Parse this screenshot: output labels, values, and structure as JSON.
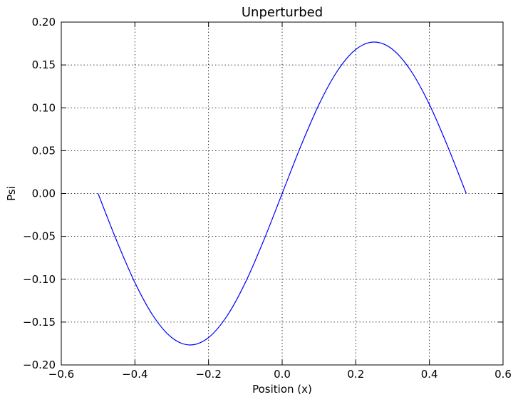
{
  "chart_data": {
    "type": "line",
    "title": "Unperturbed",
    "xlabel": "Position (x)",
    "ylabel": "Psi",
    "xlim": [
      -0.6,
      0.6
    ],
    "ylim": [
      -0.2,
      0.2
    ],
    "grid": true,
    "xticks": [
      -0.6,
      -0.4,
      -0.2,
      0.0,
      0.2,
      0.4,
      0.6
    ],
    "xtick_labels": [
      "−0.6",
      "−0.4",
      "−0.2",
      "0.0",
      "0.2",
      "0.4",
      "0.6"
    ],
    "yticks": [
      -0.2,
      -0.15,
      -0.1,
      -0.05,
      0.0,
      0.05,
      0.1,
      0.15,
      0.2
    ],
    "ytick_labels": [
      "−0.20",
      "−0.15",
      "−0.10",
      "−0.05",
      "0.00",
      "0.05",
      "0.10",
      "0.15",
      "0.20"
    ],
    "series": [
      {
        "color": "#0000ff",
        "x": [
          -0.5,
          -0.45,
          -0.4,
          -0.35,
          -0.3,
          -0.25,
          -0.2,
          -0.15,
          -0.1,
          -0.05,
          0.0,
          0.05,
          0.1,
          0.15,
          0.2,
          0.25,
          0.3,
          0.35,
          0.4,
          0.45,
          0.5
        ],
        "y": [
          0.0,
          -0.0546,
          -0.1039,
          -0.143,
          -0.1681,
          -0.1767,
          -0.1681,
          -0.143,
          -0.1039,
          -0.0546,
          0.0,
          0.0546,
          0.1039,
          0.143,
          0.1681,
          0.1767,
          0.1681,
          0.143,
          0.1039,
          0.0546,
          0.0
        ]
      }
    ]
  }
}
